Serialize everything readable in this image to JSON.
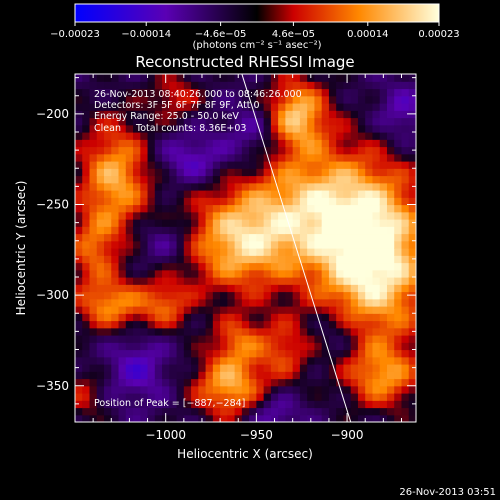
{
  "chart_data": {
    "type": "heatmap",
    "title": "Reconstructed RHESSI Image",
    "xlabel": "Heliocentric X (arcsec)",
    "ylabel": "Heliocentric Y (arcsec)",
    "xlim": [
      -1050,
      -862
    ],
    "ylim": [
      -370,
      -178
    ],
    "x_ticks": [
      -1000,
      -950,
      -900
    ],
    "x_tick_labels": [
      "−1000",
      "−950",
      "−900"
    ],
    "y_ticks": [
      -200,
      -250,
      -300,
      -350
    ],
    "y_tick_labels": [
      "−200",
      "−250",
      "−300",
      "−350"
    ],
    "grid": false,
    "colorbar": {
      "ticks": [
        -0.00023,
        -0.00014,
        -4.6e-05,
        4.6e-05,
        0.00014,
        0.00023
      ],
      "tick_labels": [
        "−0.00023",
        "−0.00014",
        "−4.6e−05",
        "4.6e−05",
        "0.00014",
        "0.00023"
      ],
      "unit_text": "(photons cm⁻² s⁻¹ asec⁻²)",
      "colors": [
        "#0000ff",
        "#5a00b4",
        "#000000",
        "#cc0000",
        "#ff8800",
        "#ffffdd"
      ]
    },
    "annotations": [
      "26-Nov-2013 08:40:26.000 to 08:46:26.000",
      "Detectors: 3F 5F 6F 7F 8F 9F, Att 0",
      "Energy Range: 25.0 - 50.0 keV",
      "Clean     Total counts: 8.36E+03"
    ],
    "peak_label": "Position of Peak = [",
    "peak_value": "−887,−284",
    "peak_close": "]",
    "peak": [
      -887,
      -284
    ],
    "limb_line": [
      [
        -958,
        -178
      ],
      [
        -898,
        -370
      ]
    ],
    "blobs": [
      {
        "x": -885,
        "y": -280,
        "sx": 22,
        "sy": 32,
        "a": 1.0
      },
      {
        "x": -918,
        "y": -250,
        "sx": 26,
        "sy": 24,
        "a": 0.65
      },
      {
        "x": -928,
        "y": -200,
        "sx": 12,
        "sy": 14,
        "a": 0.75
      },
      {
        "x": -960,
        "y": -270,
        "sx": 22,
        "sy": 20,
        "a": 0.75
      },
      {
        "x": -1028,
        "y": -235,
        "sx": 14,
        "sy": 22,
        "a": 0.7
      },
      {
        "x": -1040,
        "y": -275,
        "sx": 10,
        "sy": 14,
        "a": 0.45
      },
      {
        "x": -1030,
        "y": -305,
        "sx": 14,
        "sy": 10,
        "a": 0.6
      },
      {
        "x": -1000,
        "y": -305,
        "sx": 10,
        "sy": 10,
        "a": 0.45
      },
      {
        "x": -965,
        "y": -350,
        "sx": 14,
        "sy": 12,
        "a": 0.7
      },
      {
        "x": -960,
        "y": -325,
        "sx": 10,
        "sy": 10,
        "a": 0.45
      },
      {
        "x": -880,
        "y": -345,
        "sx": 14,
        "sy": 12,
        "a": 0.55
      },
      {
        "x": -935,
        "y": -330,
        "sx": 10,
        "sy": 12,
        "a": 0.4
      },
      {
        "x": -995,
        "y": -190,
        "sx": 10,
        "sy": 9,
        "a": 0.35
      },
      {
        "x": -1045,
        "y": -355,
        "sx": 8,
        "sy": 10,
        "a": 0.3
      },
      {
        "x": -985,
        "y": -225,
        "sx": 14,
        "sy": 10,
        "a": -0.35
      },
      {
        "x": -950,
        "y": -210,
        "sx": 12,
        "sy": 12,
        "a": -0.3
      },
      {
        "x": -1000,
        "y": -270,
        "sx": 12,
        "sy": 10,
        "a": -0.28
      },
      {
        "x": -1015,
        "y": -340,
        "sx": 12,
        "sy": 14,
        "a": -0.32
      },
      {
        "x": -940,
        "y": -365,
        "sx": 10,
        "sy": 8,
        "a": -0.3
      },
      {
        "x": -905,
        "y": -320,
        "sx": 10,
        "sy": 10,
        "a": -0.25
      },
      {
        "x": -870,
        "y": -200,
        "sx": 10,
        "sy": 12,
        "a": -0.3
      }
    ]
  },
  "footer": {
    "timestamp": "26-Nov-2013 03:51"
  }
}
